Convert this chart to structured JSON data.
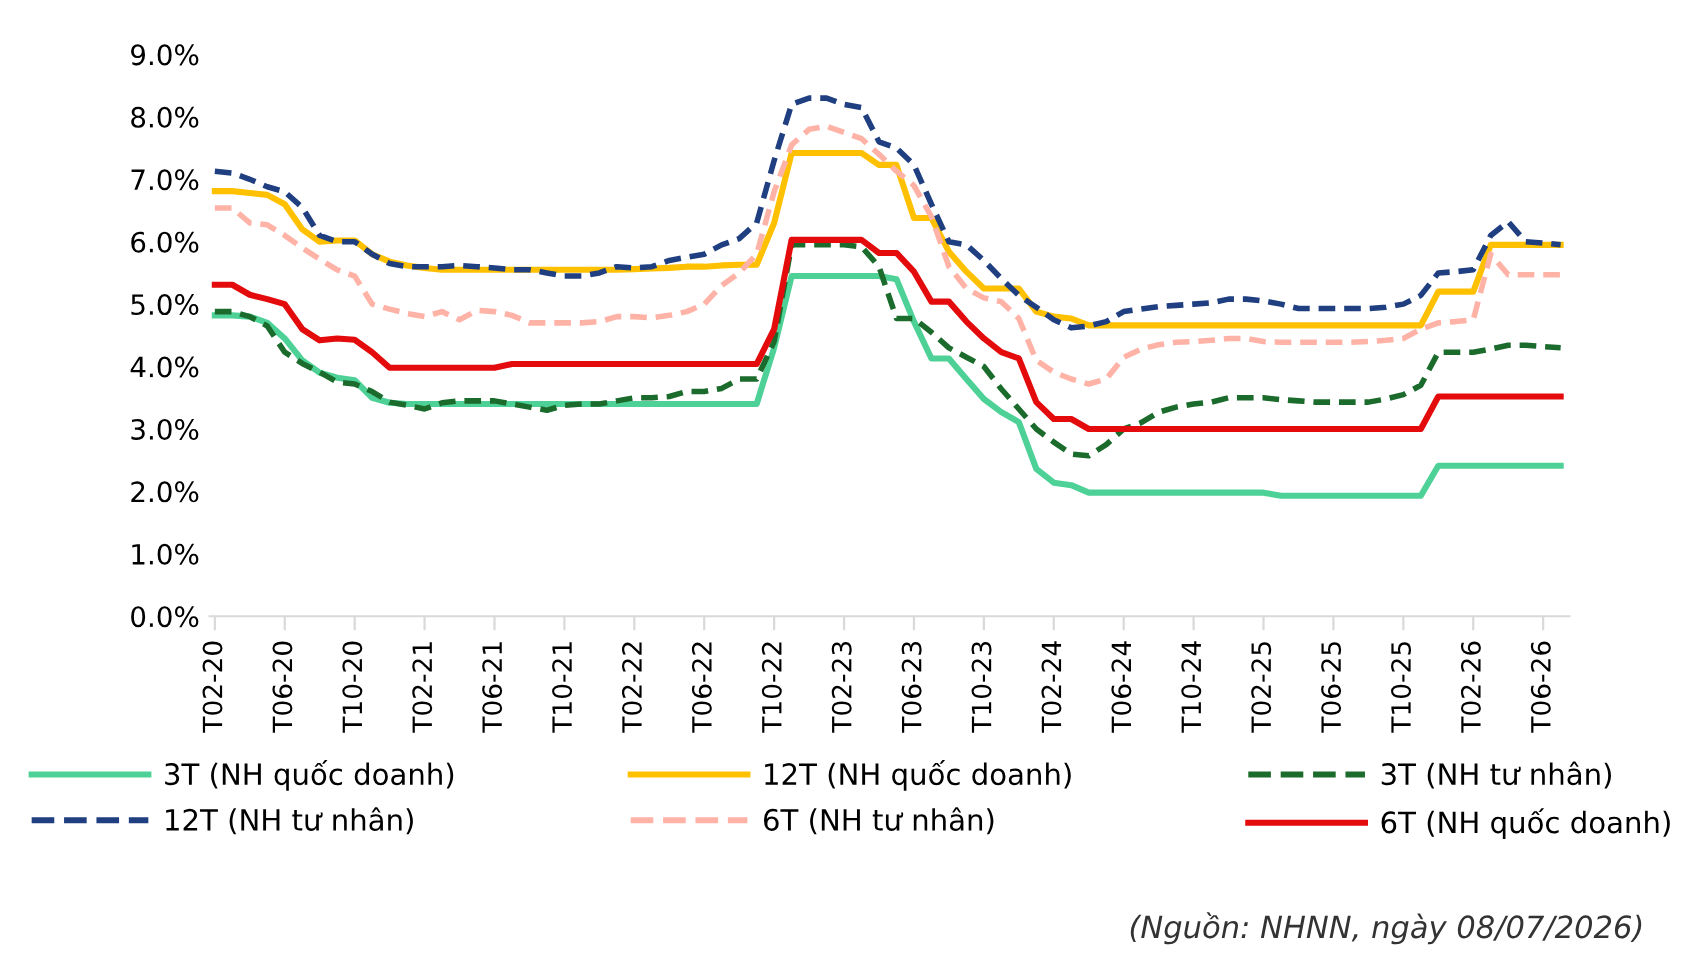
{
  "chart_data": {
    "type": "line",
    "categories": [
      "T02-20",
      null,
      null,
      null,
      "T06-20",
      null,
      null,
      null,
      "T10-20",
      null,
      null,
      null,
      "T02-21",
      null,
      null,
      null,
      "T06-21",
      null,
      null,
      null,
      "T10-21",
      null,
      null,
      null,
      "T02-22",
      null,
      null,
      null,
      "T06-22",
      null,
      null,
      null,
      "T10-22",
      null,
      null,
      null,
      "T02-23",
      null,
      null,
      null,
      "T06-23",
      null,
      null,
      null,
      "T10-23",
      null,
      null,
      null,
      "T02-24",
      null,
      null,
      null,
      "T06-24",
      null,
      null,
      null,
      "T10-24",
      null,
      null,
      null,
      "T02-25",
      null,
      null,
      null,
      "T06-25",
      null,
      null,
      null,
      "T10-25",
      null,
      null,
      null,
      "T02-26",
      null,
      null,
      null,
      "T06-26",
      null
    ],
    "series": [
      {
        "name": "3T (NH quốc doanh)",
        "color": "#4dd196",
        "line_style": "solid",
        "values": [
          4.82,
          4.82,
          4.8,
          4.7,
          4.45,
          4.1,
          3.9,
          3.82,
          3.78,
          3.5,
          3.42,
          3.4,
          3.4,
          3.4,
          3.4,
          3.4,
          3.4,
          3.4,
          3.4,
          3.4,
          3.4,
          3.4,
          3.4,
          3.4,
          3.4,
          3.4,
          3.4,
          3.4,
          3.4,
          3.4,
          3.4,
          3.4,
          4.3,
          5.45,
          5.45,
          5.45,
          5.45,
          5.45,
          5.45,
          5.4,
          4.72,
          4.13,
          4.13,
          3.8,
          3.48,
          3.27,
          3.11,
          2.36,
          2.14,
          2.1,
          1.98,
          1.98,
          1.98,
          1.98,
          1.98,
          1.98,
          1.98,
          1.98,
          1.98,
          1.98,
          1.98,
          1.93,
          1.93,
          1.93,
          1.93,
          1.93,
          1.93,
          1.93,
          1.93,
          1.93,
          2.41,
          2.41,
          2.41,
          2.41,
          2.41,
          2.41,
          2.41,
          2.41
        ]
      },
      {
        "name": "12T (NH quốc doanh)",
        "color": "#ffc000",
        "line_style": "solid",
        "values": [
          6.81,
          6.81,
          6.78,
          6.75,
          6.6,
          6.2,
          6.0,
          6.02,
          6.02,
          5.8,
          5.68,
          5.62,
          5.58,
          5.55,
          5.55,
          5.55,
          5.55,
          5.55,
          5.55,
          5.55,
          5.55,
          5.55,
          5.55,
          5.55,
          5.56,
          5.57,
          5.58,
          5.6,
          5.6,
          5.62,
          5.63,
          5.63,
          6.3,
          7.42,
          7.42,
          7.42,
          7.42,
          7.42,
          7.23,
          7.23,
          6.38,
          6.38,
          5.84,
          5.52,
          5.25,
          5.25,
          5.25,
          4.88,
          4.8,
          4.77,
          4.66,
          4.66,
          4.66,
          4.66,
          4.66,
          4.66,
          4.66,
          4.66,
          4.66,
          4.66,
          4.66,
          4.66,
          4.66,
          4.66,
          4.66,
          4.66,
          4.66,
          4.66,
          4.66,
          4.66,
          5.2,
          5.2,
          5.2,
          5.95,
          5.95,
          5.95,
          5.95,
          5.95
        ]
      },
      {
        "name": "3T (NH tư nhân)",
        "color": "#1b6b2c",
        "line_style": "dashed",
        "values": [
          4.88,
          4.88,
          4.8,
          4.65,
          4.23,
          4.05,
          3.91,
          3.75,
          3.72,
          3.6,
          3.43,
          3.38,
          3.32,
          3.42,
          3.45,
          3.45,
          3.45,
          3.4,
          3.35,
          3.3,
          3.38,
          3.4,
          3.4,
          3.45,
          3.5,
          3.5,
          3.52,
          3.6,
          3.6,
          3.65,
          3.8,
          3.8,
          4.4,
          5.95,
          5.95,
          5.95,
          5.95,
          5.92,
          5.6,
          4.77,
          4.77,
          4.55,
          4.3,
          4.15,
          4.0,
          3.64,
          3.32,
          3.0,
          2.79,
          2.6,
          2.57,
          2.75,
          3.0,
          3.1,
          3.27,
          3.35,
          3.4,
          3.43,
          3.5,
          3.5,
          3.5,
          3.47,
          3.45,
          3.43,
          3.43,
          3.43,
          3.43,
          3.48,
          3.55,
          3.7,
          4.23,
          4.23,
          4.23,
          4.28,
          4.34,
          4.34,
          4.32,
          4.3
        ]
      },
      {
        "name": "12T (NH tư nhân)",
        "color": "#1f3f80",
        "line_style": "dashed",
        "values": [
          7.13,
          7.1,
          7.0,
          6.88,
          6.8,
          6.55,
          6.1,
          6.0,
          6.0,
          5.8,
          5.65,
          5.6,
          5.6,
          5.6,
          5.62,
          5.6,
          5.58,
          5.55,
          5.55,
          5.5,
          5.45,
          5.45,
          5.5,
          5.6,
          5.58,
          5.6,
          5.7,
          5.75,
          5.8,
          5.95,
          6.05,
          6.3,
          7.3,
          8.2,
          8.3,
          8.3,
          8.2,
          8.15,
          7.6,
          7.5,
          7.23,
          6.6,
          6.0,
          5.95,
          5.7,
          5.41,
          5.14,
          4.95,
          4.75,
          4.62,
          4.65,
          4.72,
          4.88,
          4.92,
          4.96,
          4.98,
          5.0,
          5.02,
          5.08,
          5.08,
          5.05,
          5.0,
          4.93,
          4.93,
          4.93,
          4.93,
          4.93,
          4.95,
          5.0,
          5.14,
          5.5,
          5.52,
          5.55,
          6.1,
          6.32,
          6.0,
          5.98,
          5.95
        ]
      },
      {
        "name": "6T (NH tư nhân)",
        "color": "#ffb3a7",
        "line_style": "dashed",
        "values": [
          6.54,
          6.54,
          6.3,
          6.27,
          6.1,
          5.9,
          5.72,
          5.55,
          5.45,
          5.0,
          4.92,
          4.85,
          4.8,
          4.88,
          4.75,
          4.9,
          4.88,
          4.82,
          4.7,
          4.7,
          4.7,
          4.7,
          4.72,
          4.8,
          4.8,
          4.78,
          4.82,
          4.88,
          5.0,
          5.3,
          5.5,
          5.8,
          6.8,
          7.55,
          7.8,
          7.85,
          7.75,
          7.65,
          7.4,
          7.13,
          6.9,
          6.4,
          5.6,
          5.25,
          5.1,
          5.04,
          4.77,
          4.1,
          3.91,
          3.8,
          3.72,
          3.8,
          4.15,
          4.28,
          4.35,
          4.39,
          4.4,
          4.42,
          4.45,
          4.45,
          4.4,
          4.39,
          4.39,
          4.39,
          4.39,
          4.39,
          4.4,
          4.42,
          4.45,
          4.6,
          4.7,
          4.72,
          4.75,
          5.8,
          5.47,
          5.47,
          5.47,
          5.47
        ]
      },
      {
        "name": "6T (NH quốc doanh)",
        "color": "#e30b0b",
        "line_style": "solid",
        "values": [
          5.31,
          5.31,
          5.15,
          5.08,
          5.0,
          4.6,
          4.42,
          4.45,
          4.43,
          4.23,
          3.98,
          3.98,
          3.98,
          3.98,
          3.98,
          3.98,
          3.98,
          4.04,
          4.04,
          4.04,
          4.04,
          4.04,
          4.04,
          4.04,
          4.04,
          4.04,
          4.04,
          4.04,
          4.04,
          4.04,
          4.04,
          4.04,
          4.6,
          6.03,
          6.03,
          6.03,
          6.03,
          6.03,
          5.82,
          5.82,
          5.52,
          5.04,
          5.04,
          4.72,
          4.45,
          4.23,
          4.13,
          3.43,
          3.16,
          3.16,
          3.0,
          3.0,
          3.0,
          3.0,
          3.0,
          3.0,
          3.0,
          3.0,
          3.0,
          3.0,
          3.0,
          3.0,
          3.0,
          3.0,
          3.0,
          3.0,
          3.0,
          3.0,
          3.0,
          3.0,
          3.52,
          3.52,
          3.52,
          3.52,
          3.52,
          3.52,
          3.52,
          3.52
        ]
      }
    ],
    "ylim": [
      0,
      9
    ],
    "yticks": [
      {
        "value": 0,
        "label": "0.0%"
      },
      {
        "value": 1,
        "label": "1.0%"
      },
      {
        "value": 2,
        "label": "2.0%"
      },
      {
        "value": 3,
        "label": "3.0%"
      },
      {
        "value": 4,
        "label": "4.0%"
      },
      {
        "value": 5,
        "label": "5.0%"
      },
      {
        "value": 6,
        "label": "6.0%"
      },
      {
        "value": 7,
        "label": "7.0%"
      },
      {
        "value": 8,
        "label": "8.0%"
      },
      {
        "value": 9,
        "label": "9.0%"
      }
    ],
    "grid": false,
    "legend": "bottom",
    "marker": "none",
    "annotations": [
      "(Nguồn: NHNN, ngày 08/07/2026)"
    ]
  }
}
